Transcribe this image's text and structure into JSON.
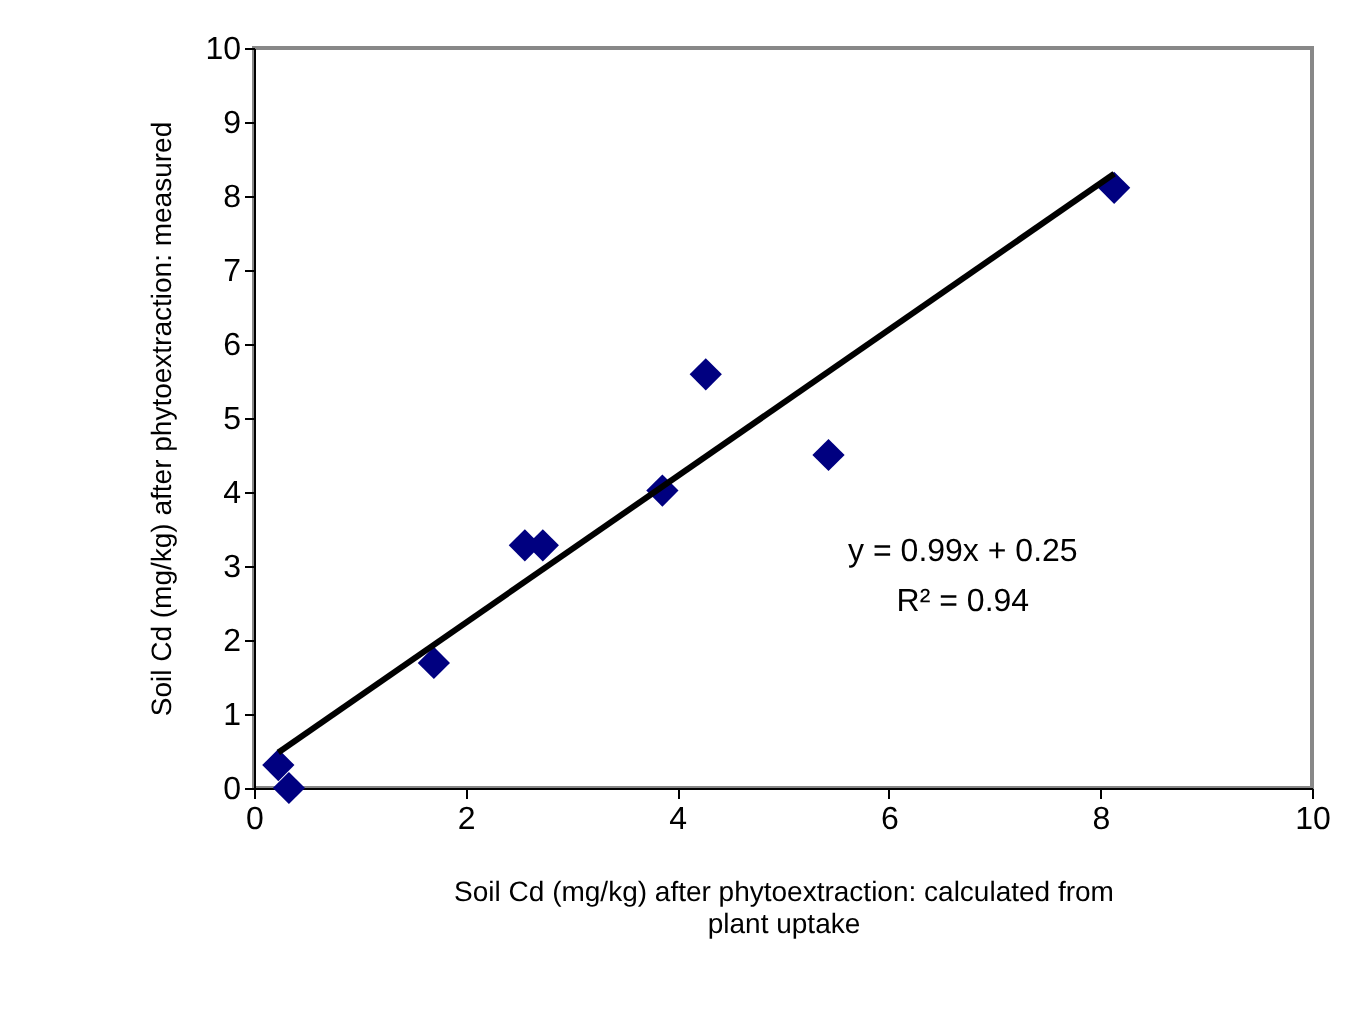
{
  "chart_data": {
    "type": "scatter",
    "xlabel": "Soil Cd (mg/kg) after phytoextraction: calculated from plant uptake",
    "ylabel": "Soil Cd (mg/kg) after phytoextraction: measured",
    "xlim": [
      0,
      10
    ],
    "xticks": [
      0,
      2,
      4,
      6,
      8,
      10
    ],
    "ylim": [
      0,
      10
    ],
    "yticks": [
      0,
      1,
      2,
      3,
      4,
      5,
      6,
      7,
      8,
      9,
      10
    ],
    "grid": false,
    "marker": "diamond",
    "annotations": [
      "y = 0.99x + 0.25",
      "R² = 0.94"
    ],
    "series": [
      {
        "color": "#000080",
        "x": [
          0.23,
          0.33,
          1.7,
          2.56,
          2.73,
          3.86,
          4.27,
          5.43,
          8.13
        ],
        "values": [
          0.31,
          0,
          1.69,
          3.28,
          3.28,
          4.02,
          5.59,
          4.5,
          8.11
        ]
      },
      {
        "type": "line",
        "marker": "none",
        "color": "#000000",
        "x": [
          0.23,
          8.13
        ],
        "values": [
          0.48,
          8.3
        ]
      }
    ]
  }
}
